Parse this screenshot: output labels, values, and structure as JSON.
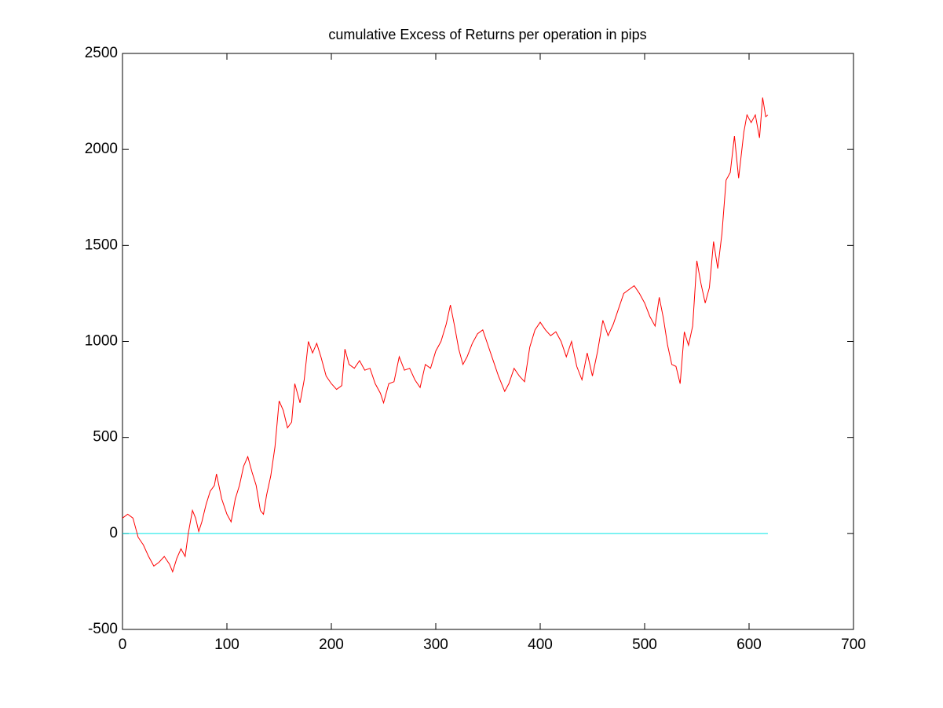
{
  "chart_data": {
    "type": "line",
    "title": "cumulative Excess of Returns per operation in pips",
    "xlim": [
      0,
      700
    ],
    "xticks": [
      0,
      100,
      200,
      300,
      400,
      500,
      600,
      700
    ],
    "ylim": [
      -500,
      2500
    ],
    "yticks": [
      -500,
      0,
      500,
      1000,
      1500,
      2000,
      2500
    ],
    "grid": false,
    "series": [
      {
        "color": "#ff0000",
        "x": [
          0,
          5,
          10,
          15,
          20,
          25,
          30,
          35,
          40,
          45,
          48,
          52,
          56,
          60,
          63,
          67,
          70,
          73,
          76,
          80,
          84,
          88,
          90,
          95,
          100,
          104,
          108,
          112,
          116,
          120,
          124,
          128,
          132,
          135,
          138,
          142,
          146,
          150,
          154,
          158,
          162,
          165,
          170,
          174,
          178,
          182,
          186,
          190,
          195,
          200,
          205,
          210,
          213,
          217,
          222,
          227,
          232,
          237,
          242,
          247,
          250,
          255,
          260,
          265,
          270,
          275,
          280,
          285,
          290,
          295,
          300,
          305,
          310,
          314,
          318,
          322,
          326,
          330,
          335,
          340,
          345,
          350,
          355,
          360,
          366,
          370,
          375,
          380,
          385,
          390,
          395,
          400,
          405,
          410,
          415,
          420,
          425,
          430,
          435,
          440,
          445,
          450,
          455,
          460,
          465,
          470,
          475,
          480,
          485,
          490,
          495,
          500,
          505,
          510,
          514,
          518,
          522,
          526,
          530,
          534,
          538,
          542,
          546,
          550,
          554,
          558,
          562,
          566,
          570,
          574,
          578,
          582,
          586,
          590,
          595,
          598,
          602,
          606,
          610,
          613,
          616,
          618
        ],
        "values": [
          80,
          100,
          80,
          -20,
          -60,
          -120,
          -170,
          -150,
          -120,
          -160,
          -200,
          -130,
          -80,
          -120,
          0,
          120,
          80,
          10,
          60,
          150,
          220,
          250,
          310,
          180,
          100,
          60,
          180,
          250,
          350,
          400,
          320,
          250,
          120,
          100,
          200,
          300,
          450,
          690,
          640,
          550,
          580,
          780,
          680,
          800,
          1000,
          940,
          990,
          920,
          820,
          780,
          750,
          770,
          960,
          880,
          860,
          900,
          850,
          860,
          780,
          730,
          680,
          780,
          790,
          920,
          850,
          860,
          800,
          760,
          880,
          860,
          950,
          1000,
          1090,
          1190,
          1080,
          960,
          880,
          920,
          990,
          1040,
          1060,
          980,
          900,
          820,
          740,
          780,
          860,
          820,
          790,
          970,
          1060,
          1100,
          1060,
          1030,
          1050,
          1000,
          920,
          1000,
          870,
          800,
          940,
          820,
          950,
          1110,
          1030,
          1090,
          1170,
          1250,
          1270,
          1290,
          1250,
          1200,
          1130,
          1080,
          1230,
          1120,
          980,
          880,
          870,
          780,
          1050,
          980,
          1080,
          1420,
          1300,
          1200,
          1280,
          1520,
          1380,
          1560,
          1840,
          1880,
          2070,
          1850,
          2090,
          2180,
          2140,
          2180,
          2060,
          2270,
          2170,
          2180
        ]
      },
      {
        "color": "#00e5e5",
        "x": [
          0,
          618
        ],
        "values": [
          0,
          0
        ]
      }
    ]
  }
}
